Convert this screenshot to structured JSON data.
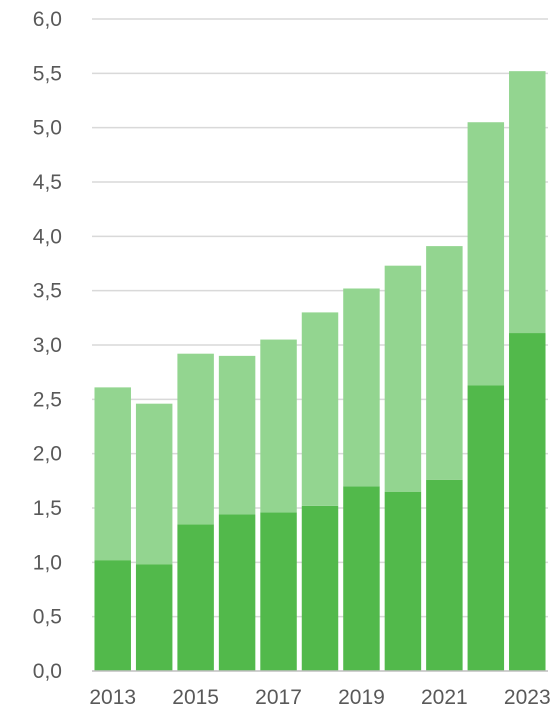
{
  "chart_data": {
    "type": "bar",
    "stacked": true,
    "categories": [
      "2013",
      "2014",
      "2015",
      "2016",
      "2017",
      "2018",
      "2019",
      "2020",
      "2021",
      "2022",
      "2023"
    ],
    "x_tick_labels": [
      "2013",
      "2015",
      "2017",
      "2019",
      "2021",
      "2023"
    ],
    "series": [
      {
        "values": [
          1.02,
          0.98,
          1.35,
          1.44,
          1.46,
          1.52,
          1.7,
          1.65,
          1.76,
          2.63,
          3.11
        ]
      },
      {
        "values": [
          1.59,
          1.48,
          1.57,
          1.46,
          1.59,
          1.78,
          1.82,
          2.08,
          2.15,
          2.42,
          2.41
        ]
      }
    ],
    "series_colors": [
      "#52b94b",
      "#93d590"
    ],
    "ylim": [
      0,
      6
    ],
    "y_tick_labels": [
      "0,0",
      "0,5",
      "1,0",
      "1,5",
      "2,0",
      "2,5",
      "3,0",
      "3,5",
      "4,0",
      "4,5",
      "5,0",
      "5,5",
      "6,0"
    ],
    "grid": true,
    "legend": "none",
    "title": "",
    "xlabel": "",
    "ylabel": ""
  }
}
